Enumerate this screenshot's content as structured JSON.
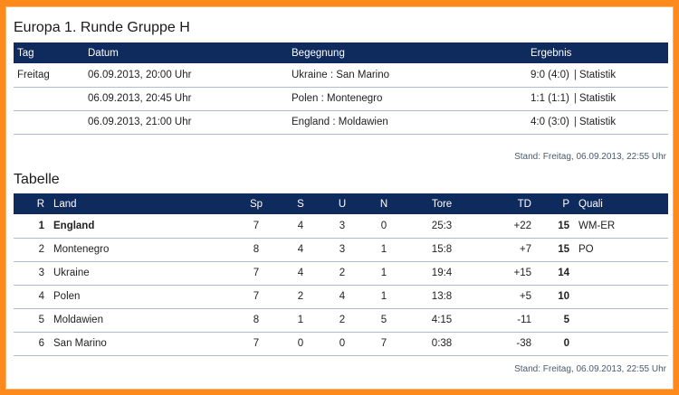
{
  "matches_section": {
    "title": "Europa 1. Runde Gruppe H",
    "headers": {
      "day": "Tag",
      "date": "Datum",
      "match": "Begegnung",
      "result": "Ergebnis"
    },
    "rows": [
      {
        "day": "Freitag",
        "date": "06.09.2013, 20:00 Uhr",
        "match": "Ukraine : San Marino",
        "result": "9:0 (4:0)",
        "stats": "Statistik"
      },
      {
        "day": "",
        "date": "06.09.2013, 20:45 Uhr",
        "match": "Polen : Montenegro",
        "result": "1:1 (1:1)",
        "stats": "Statistik"
      },
      {
        "day": "",
        "date": "06.09.2013, 21:00 Uhr",
        "match": "England : Moldawien",
        "result": "4:0 (3:0)",
        "stats": "Statistik"
      }
    ],
    "updated": "Stand: Freitag, 06.09.2013, 22:55 Uhr"
  },
  "standings_section": {
    "title": "Tabelle",
    "headers": {
      "rank": "R",
      "country": "Land",
      "played": "Sp",
      "won": "S",
      "drawn": "U",
      "lost": "N",
      "goals": "Tore",
      "diff": "TD",
      "points": "P",
      "qualification": "Quali"
    },
    "rows": [
      {
        "rank": "1",
        "country": "England",
        "played": "7",
        "won": "4",
        "drawn": "3",
        "lost": "0",
        "goals": "25:3",
        "diff": "+22",
        "points": "15",
        "qualification": "WM-ER"
      },
      {
        "rank": "2",
        "country": "Montenegro",
        "played": "8",
        "won": "4",
        "drawn": "3",
        "lost": "1",
        "goals": "15:8",
        "diff": "+7",
        "points": "15",
        "qualification": "PO"
      },
      {
        "rank": "3",
        "country": "Ukraine",
        "played": "7",
        "won": "4",
        "drawn": "2",
        "lost": "1",
        "goals": "19:4",
        "diff": "+15",
        "points": "14",
        "qualification": ""
      },
      {
        "rank": "4",
        "country": "Polen",
        "played": "7",
        "won": "2",
        "drawn": "4",
        "lost": "1",
        "goals": "13:8",
        "diff": "+5",
        "points": "10",
        "qualification": ""
      },
      {
        "rank": "5",
        "country": "Moldawien",
        "played": "8",
        "won": "1",
        "drawn": "2",
        "lost": "5",
        "goals": "4:15",
        "diff": "-11",
        "points": "5",
        "qualification": ""
      },
      {
        "rank": "6",
        "country": "San Marino",
        "played": "7",
        "won": "0",
        "drawn": "0",
        "lost": "7",
        "goals": "0:38",
        "diff": "-38",
        "points": "0",
        "qualification": ""
      }
    ],
    "updated": "Stand: Freitag, 06.09.2013, 22:55 Uhr"
  },
  "colors": {
    "header_bg": "#0f2a5c",
    "frame": "#ff8a1c",
    "row_divider": "#a9bed3"
  }
}
